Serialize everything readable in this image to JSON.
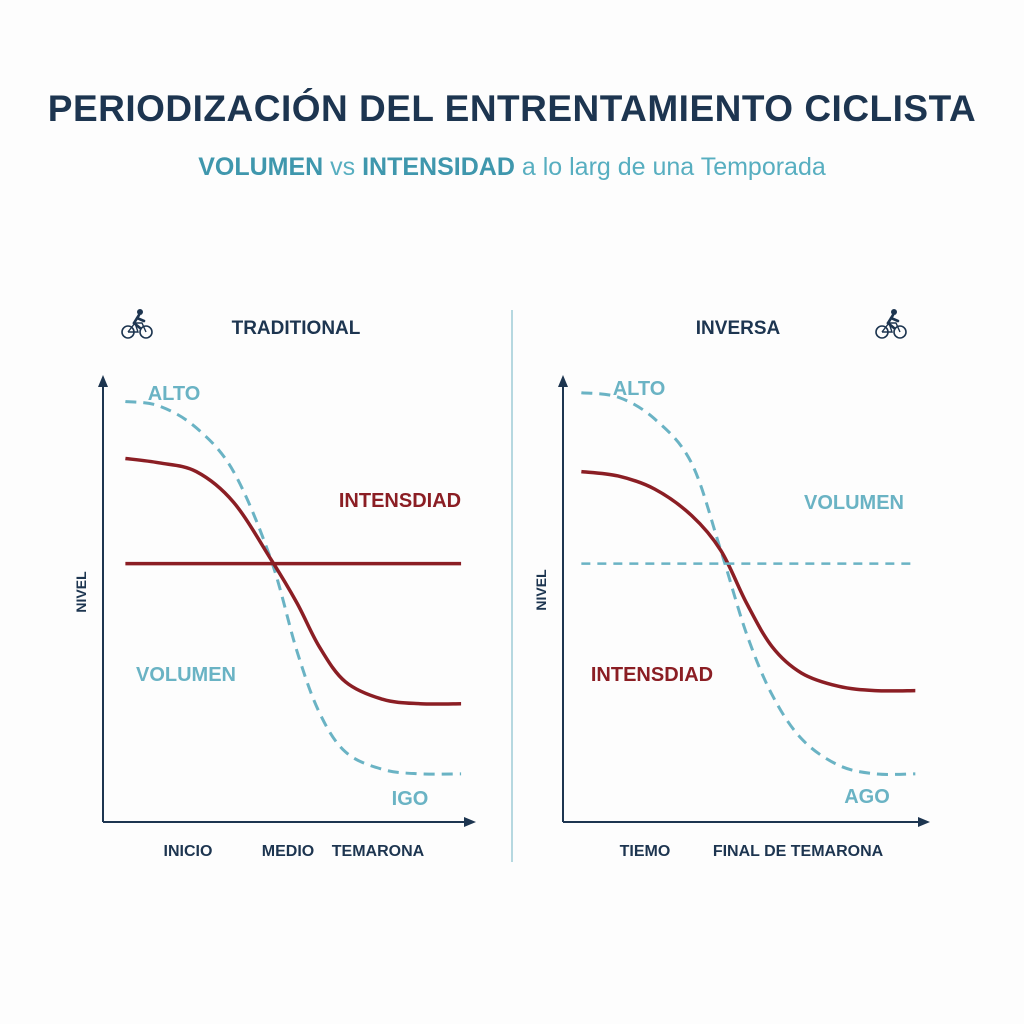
{
  "title": "PERIODIZACIÓN DEL ENTRENTAMIENTO CICLISTA",
  "subtitle": {
    "part1": "VOLUMEN",
    "part2": " vs ",
    "part3": "INTENSIDAD",
    "part4": " a lo larg de una Temporada"
  },
  "colors": {
    "volume": "#6ab3c4",
    "intensity": "#8b1e24",
    "axis": "#1d3550",
    "title": "#1d3550"
  },
  "icons": {
    "left": "cyclist-icon",
    "right": "cyclist-icon"
  },
  "chart_data": [
    {
      "type": "line",
      "panel_title": "TRADITIONAL",
      "ylabel": "NIVEL",
      "x_ticks": [
        "INICIO",
        "MEDIO",
        "TEMARONA"
      ],
      "xlim": [
        0,
        10
      ],
      "ylim": [
        0,
        10
      ],
      "top_label": "ALTO",
      "bottom_label": "IGO",
      "grid": false,
      "series": [
        {
          "name": "VOLUMEN",
          "style": "dashed",
          "color": "#6ab3c4",
          "points": [
            [
              0.6,
              9.6
            ],
            [
              1.5,
              9.5
            ],
            [
              2.5,
              9.0
            ],
            [
              3.5,
              8.0
            ],
            [
              4.5,
              6.0
            ],
            [
              5.2,
              3.9
            ],
            [
              5.8,
              2.5
            ],
            [
              6.5,
              1.6
            ],
            [
              7.5,
              1.2
            ],
            [
              8.5,
              1.1
            ],
            [
              9.6,
              1.1
            ]
          ]
        },
        {
          "name": "INTENSDIAD",
          "style": "solid",
          "color": "#8b1e24",
          "points": [
            [
              0.6,
              8.3
            ],
            [
              1.5,
              8.2
            ],
            [
              2.5,
              8.0
            ],
            [
              3.5,
              7.3
            ],
            [
              4.5,
              6.0
            ],
            [
              5.2,
              5.0
            ],
            [
              5.8,
              4.0
            ],
            [
              6.5,
              3.2
            ],
            [
              7.5,
              2.8
            ],
            [
              8.5,
              2.7
            ],
            [
              9.6,
              2.7
            ]
          ]
        },
        {
          "name": "",
          "style": "solid",
          "color": "#8b1e24",
          "points": [
            [
              0.6,
              5.9
            ],
            [
              9.6,
              5.9
            ]
          ]
        }
      ],
      "series_labels": [
        "INTENSDIAD",
        "VOLUMEN"
      ]
    },
    {
      "type": "line",
      "panel_title": "INVERSA",
      "ylabel": "NIVEL",
      "x_ticks": [
        "TIEMO",
        "FINAL DE TEMARONA"
      ],
      "xlim": [
        0,
        10
      ],
      "ylim": [
        0,
        10
      ],
      "top_label": "ALTO",
      "bottom_label": "AGO",
      "grid": false,
      "series": [
        {
          "name": "",
          "style": "dashed",
          "color": "#6ab3c4",
          "points": [
            [
              0.5,
              9.8
            ],
            [
              1.5,
              9.7
            ],
            [
              2.5,
              9.2
            ],
            [
              3.5,
              8.2
            ],
            [
              4.3,
              6.2
            ],
            [
              5.0,
              4.3
            ],
            [
              5.7,
              2.9
            ],
            [
              6.5,
              1.9
            ],
            [
              7.5,
              1.3
            ],
            [
              8.5,
              1.1
            ],
            [
              9.6,
              1.1
            ]
          ]
        },
        {
          "name": "",
          "style": "solid",
          "color": "#8b1e24",
          "points": [
            [
              0.5,
              8.0
            ],
            [
              1.5,
              7.9
            ],
            [
              2.5,
              7.6
            ],
            [
              3.5,
              7.0
            ],
            [
              4.3,
              6.2
            ],
            [
              5.0,
              5.0
            ],
            [
              5.7,
              4.0
            ],
            [
              6.5,
              3.4
            ],
            [
              7.5,
              3.1
            ],
            [
              8.5,
              3.0
            ],
            [
              9.6,
              3.0
            ]
          ]
        },
        {
          "name": "",
          "style": "dashed",
          "color": "#6ab3c4",
          "points": [
            [
              0.5,
              5.9
            ],
            [
              9.6,
              5.9
            ]
          ]
        }
      ],
      "series_labels": [
        "VOLUMEN",
        "INTENSDIAD"
      ]
    }
  ]
}
